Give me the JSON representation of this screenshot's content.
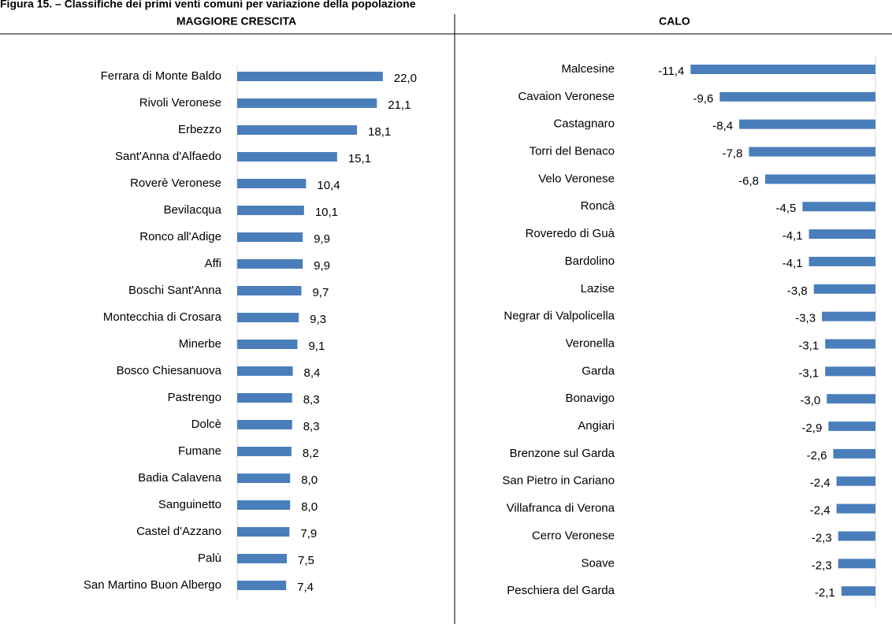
{
  "title": "Figura 15. – Classifiche dei primi venti comuni per variazione della popolazione",
  "chart_data": [
    {
      "type": "bar",
      "orientation": "horizontal",
      "title": "MAGGIORE CRESCITA",
      "color": "#4a7ebb",
      "categories": [
        "Ferrara di Monte Baldo",
        "Rivoli Veronese",
        "Erbezzo",
        "Sant'Anna d'Alfaedo",
        "Roverè Veronese",
        "Bevilacqua",
        "Ronco all'Adige",
        "Affi",
        "Boschi Sant'Anna",
        "Montecchia di Crosara",
        "Minerbe",
        "Bosco Chiesanuova",
        "Pastrengo",
        "Dolcè",
        "Fumane",
        "Badia Calavena",
        "Sanguinetto",
        "Castel d'Azzano",
        "Palù",
        "San Martino Buon Albergo"
      ],
      "values": [
        22.0,
        21.1,
        18.1,
        15.1,
        10.4,
        10.1,
        9.9,
        9.9,
        9.7,
        9.3,
        9.1,
        8.4,
        8.3,
        8.3,
        8.2,
        8.0,
        8.0,
        7.9,
        7.5,
        7.4
      ],
      "value_labels": [
        "22,0",
        "21,1",
        "18,1",
        "15,1",
        "10,4",
        "10,1",
        "9,9",
        "9,9",
        "9,7",
        "9,3",
        "9,1",
        "8,4",
        "8,3",
        "8,3",
        "8,2",
        "8,0",
        "8,0",
        "7,9",
        "7,5",
        "7,4"
      ],
      "xlim": [
        0,
        25
      ]
    },
    {
      "type": "bar",
      "orientation": "horizontal",
      "title": "CALO",
      "color": "#4a7ebb",
      "categories": [
        "Malcesine",
        "Cavaion Veronese",
        "Castagnaro",
        "Torri del Benaco",
        "Velo Veronese",
        "Roncà",
        "Roveredo di Guà",
        "Bardolino",
        "Lazise",
        "Negrar di Valpolicella",
        "Veronella",
        "Garda",
        "Bonavigo",
        "Angiari",
        "Brenzone sul Garda",
        "San Pietro in Cariano",
        "Villafranca di Verona",
        "Cerro Veronese",
        "Soave",
        "Peschiera del Garda"
      ],
      "values": [
        -11.4,
        -9.6,
        -8.4,
        -7.8,
        -6.8,
        -4.5,
        -4.1,
        -4.1,
        -3.8,
        -3.3,
        -3.1,
        -3.1,
        -3.0,
        -2.9,
        -2.6,
        -2.4,
        -2.4,
        -2.3,
        -2.3,
        -2.1
      ],
      "value_labels": [
        "-11,4",
        "-9,6",
        "-8,4",
        "-7,8",
        "-6,8",
        "-4,5",
        "-4,1",
        "-4,1",
        "-3,8",
        "-3,3",
        "-3,1",
        "-3,1",
        "-3,0",
        "-2,9",
        "-2,6",
        "-2,4",
        "-2,4",
        "-2,3",
        "-2,3",
        "-2,1"
      ],
      "xlim": [
        -12,
        0
      ]
    }
  ]
}
